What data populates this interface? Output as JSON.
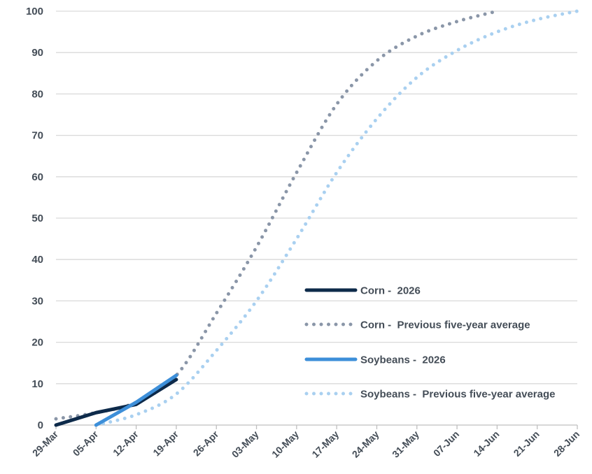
{
  "chart_data": {
    "type": "line",
    "ylim": [
      0,
      100
    ],
    "xlim": [
      "2026-03-29",
      "2026-06-28"
    ],
    "y_ticks": [
      0,
      10,
      20,
      30,
      40,
      50,
      60,
      70,
      80,
      90,
      100
    ],
    "x_ticks": [
      {
        "date": "2026-03-29",
        "label": "29-Mar"
      },
      {
        "date": "2026-04-05",
        "label": "05-Apr"
      },
      {
        "date": "2026-04-12",
        "label": "12-Apr"
      },
      {
        "date": "2026-04-19",
        "label": "19-Apr"
      },
      {
        "date": "2026-04-26",
        "label": "26-Apr"
      },
      {
        "date": "2026-05-03",
        "label": "03-May"
      },
      {
        "date": "2026-05-10",
        "label": "10-May"
      },
      {
        "date": "2026-05-17",
        "label": "17-May"
      },
      {
        "date": "2026-05-24",
        "label": "24-May"
      },
      {
        "date": "2026-05-31",
        "label": "31-May"
      },
      {
        "date": "2026-06-07",
        "label": "07-Jun"
      },
      {
        "date": "2026-06-14",
        "label": "14-Jun"
      },
      {
        "date": "2026-06-21",
        "label": "21-Jun"
      },
      {
        "date": "2026-06-28",
        "label": "28-Jun"
      }
    ],
    "grid": "horizontal",
    "legend_position": "bottom-right",
    "series": [
      {
        "name": "Corn -  2026",
        "color": "#0d2a4a",
        "style": "solid",
        "points": [
          [
            "2026-03-29",
            0
          ],
          [
            "2026-04-05",
            3
          ],
          [
            "2026-04-12",
            5
          ],
          [
            "2026-04-19",
            11
          ]
        ]
      },
      {
        "name": "Corn -  Previous five-year average",
        "color": "#8a96a8",
        "style": "dotted",
        "points": [
          [
            "2026-03-29",
            1.5
          ],
          [
            "2026-04-05",
            3
          ],
          [
            "2026-04-12",
            5.5
          ],
          [
            "2026-04-19",
            12
          ],
          [
            "2026-04-26",
            27
          ],
          [
            "2026-05-03",
            43
          ],
          [
            "2026-05-10",
            61
          ],
          [
            "2026-05-17",
            77.5
          ],
          [
            "2026-05-24",
            88
          ],
          [
            "2026-05-31",
            94
          ],
          [
            "2026-06-07",
            97.5
          ],
          [
            "2026-06-14",
            100
          ]
        ]
      },
      {
        "name": "Soybeans -  2026",
        "color": "#3d8fd9",
        "style": "solid",
        "points": [
          [
            "2026-04-05",
            0
          ],
          [
            "2026-04-12",
            5.5
          ],
          [
            "2026-04-19",
            12
          ]
        ]
      },
      {
        "name": "Soybeans -  Previous five-year average",
        "color": "#a9d0f0",
        "style": "dotted",
        "points": [
          [
            "2026-04-05",
            0
          ],
          [
            "2026-04-12",
            2.5
          ],
          [
            "2026-04-19",
            7.5
          ],
          [
            "2026-04-26",
            18
          ],
          [
            "2026-05-03",
            30
          ],
          [
            "2026-05-10",
            45
          ],
          [
            "2026-05-17",
            61
          ],
          [
            "2026-05-24",
            74
          ],
          [
            "2026-05-31",
            84
          ],
          [
            "2026-06-07",
            90.5
          ],
          [
            "2026-06-14",
            95
          ],
          [
            "2026-06-21",
            98
          ],
          [
            "2026-06-28",
            100
          ]
        ]
      }
    ]
  }
}
